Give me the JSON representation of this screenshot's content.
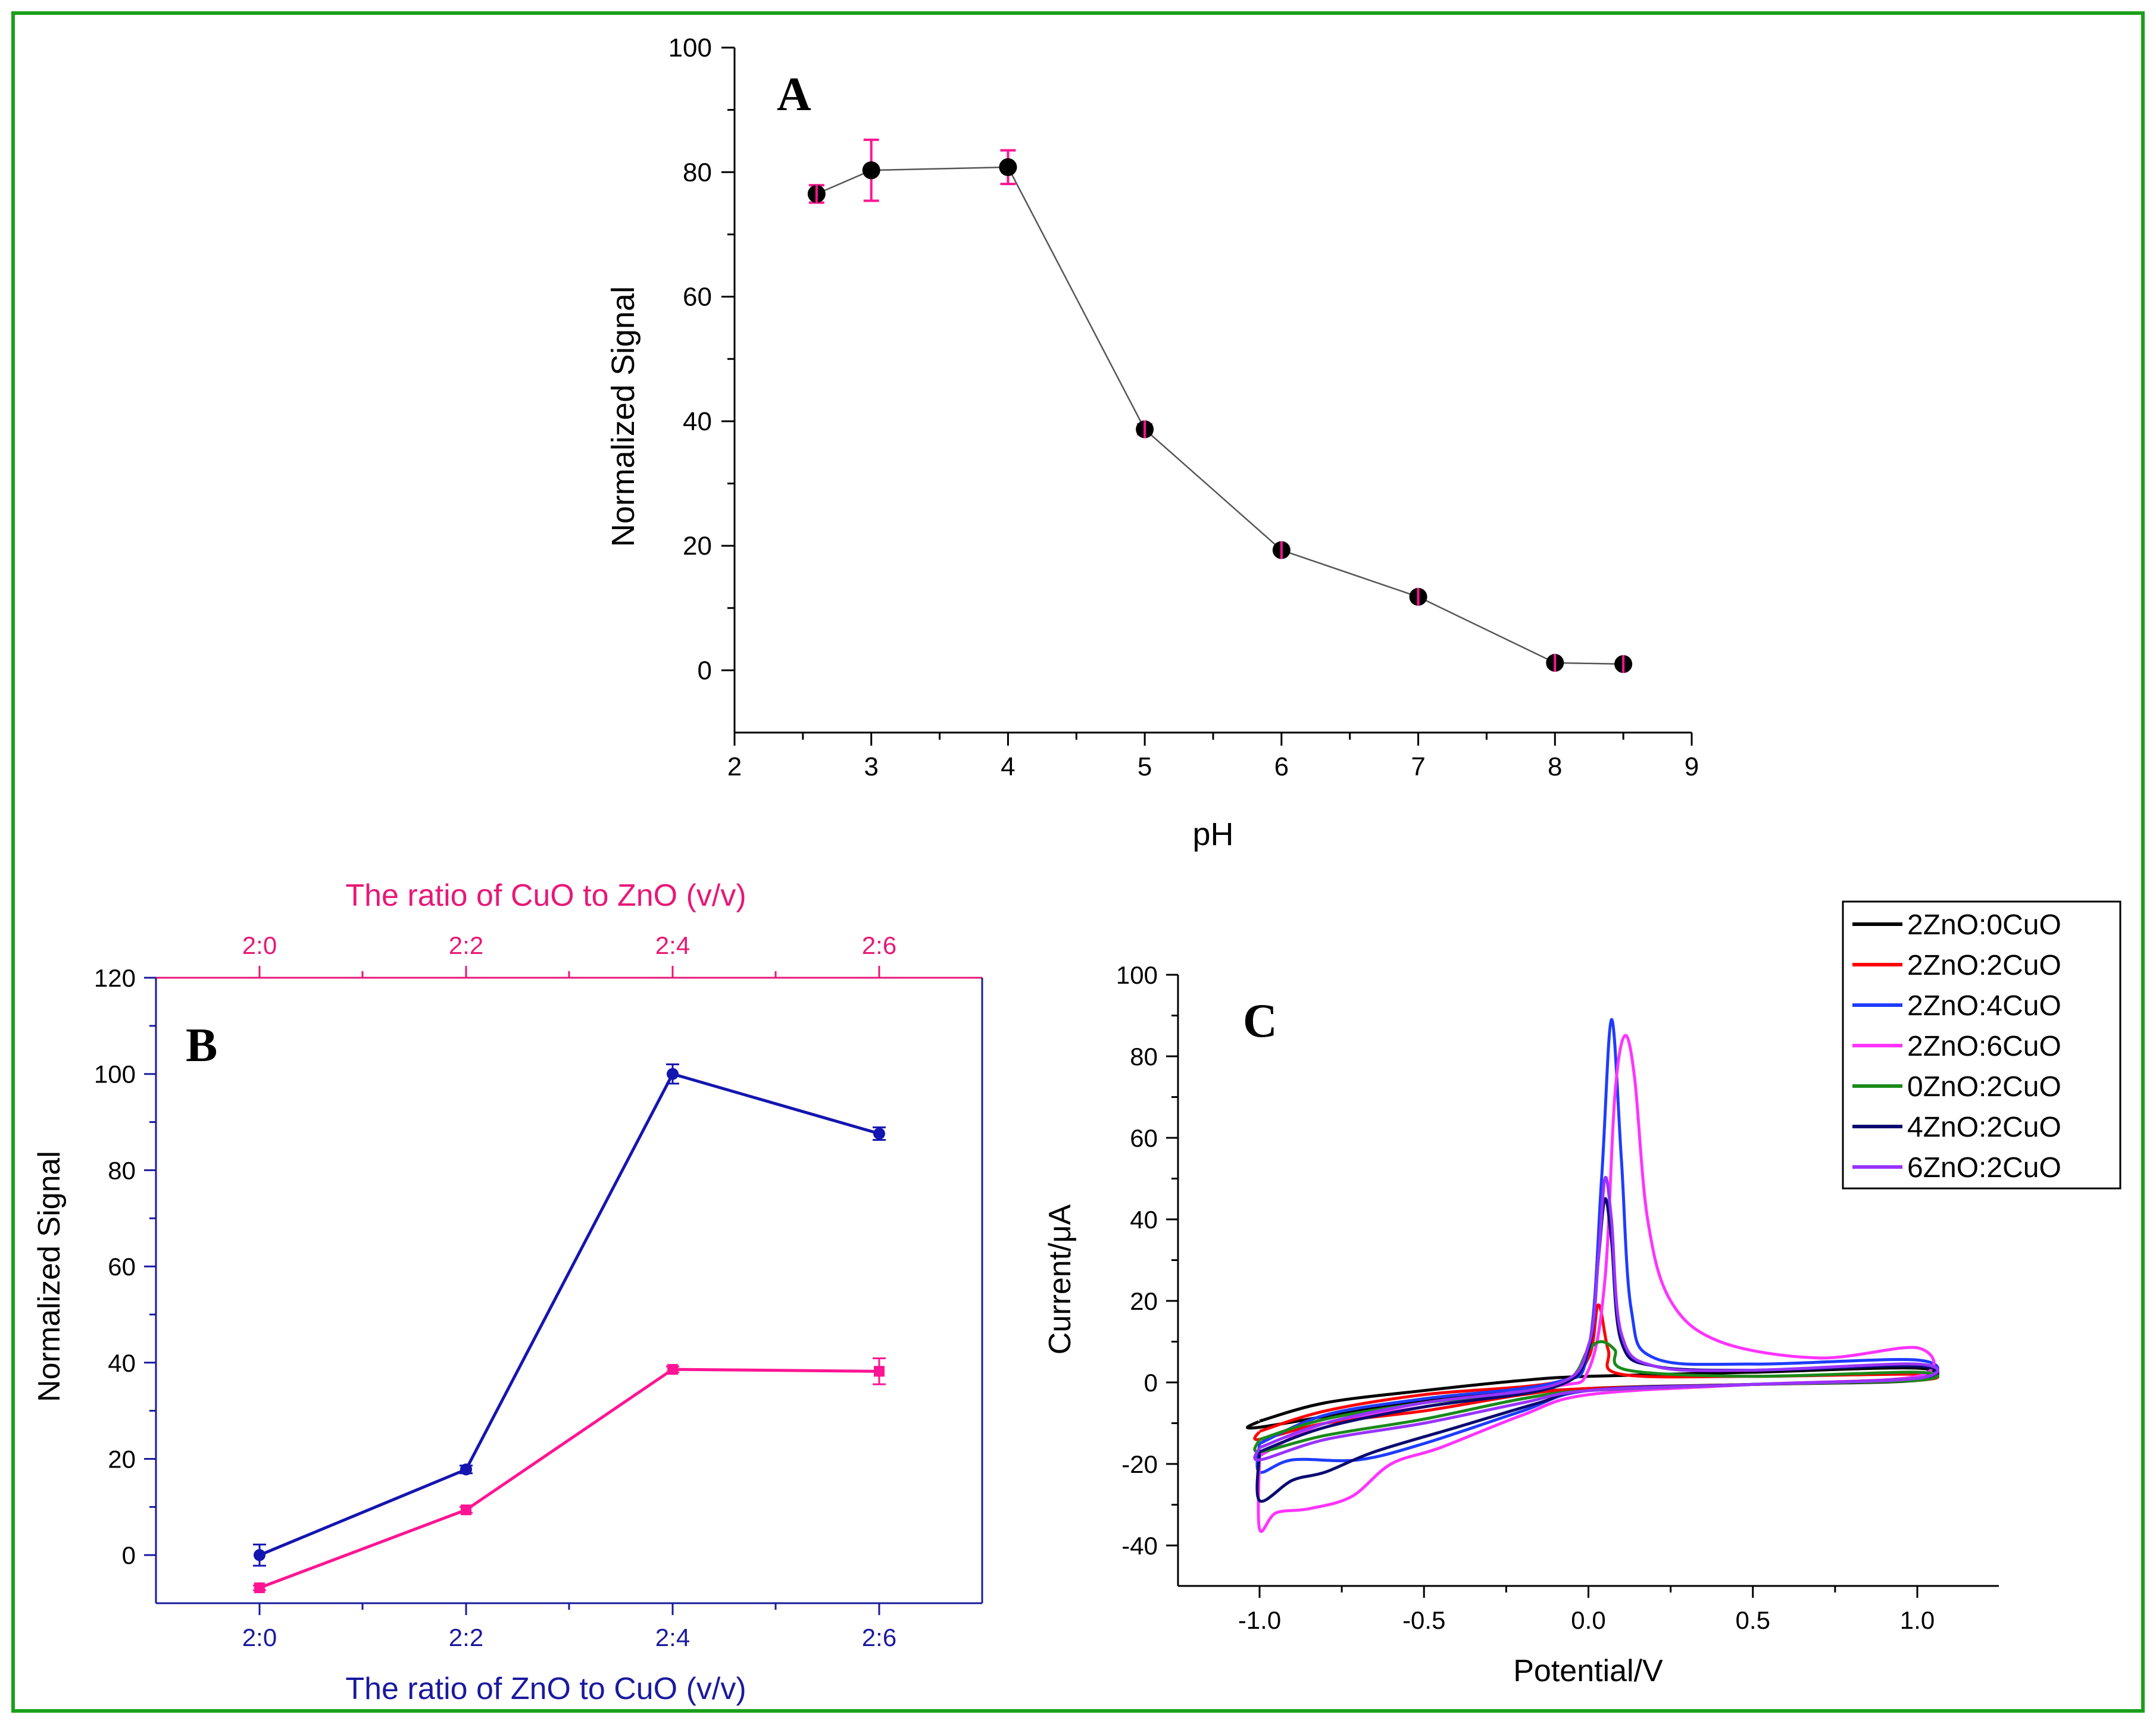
{
  "colors": {
    "border": "#1aa01a",
    "black": "#000000",
    "grey_line": "#555555",
    "pink": "#ff1493",
    "blue": "#1515b0",
    "pink_axis": "#e81877",
    "blue_axis": "#1a1a9e"
  },
  "chart_data": [
    {
      "id": "A",
      "type": "line",
      "panel_label": "A",
      "xlabel": "pH",
      "ylabel": "Normalized Signal",
      "xlim": [
        2,
        9
      ],
      "ylim": [
        -10,
        100
      ],
      "xticks": [
        "2",
        "3",
        "4",
        "5",
        "6",
        "7",
        "8",
        "9"
      ],
      "yticks": [
        "0",
        "20",
        "40",
        "60",
        "80",
        "100"
      ],
      "x": [
        2.6,
        3,
        4,
        5,
        6,
        7,
        8,
        8.5
      ],
      "y": [
        76.5,
        80.3,
        80.8,
        38.7,
        19.3,
        11.8,
        1.2,
        1.0
      ],
      "err": [
        1.4,
        4.9,
        2.7,
        0.8,
        0.6,
        0.6,
        0.6,
        0.6
      ],
      "marker_color": "#000000",
      "error_color": "#ff1493",
      "line_color": "#555555"
    },
    {
      "id": "B",
      "type": "line",
      "panel_label": "B",
      "xlabel": "The ratio of ZnO to CuO (v/v)",
      "x2label": "The ratio of CuO to ZnO (v/v)",
      "ylabel": "Normalized Signal",
      "ylim": [
        -10,
        120
      ],
      "yticks": [
        "0",
        "20",
        "40",
        "60",
        "80",
        "100",
        "120"
      ],
      "categories": [
        "2:0",
        "2:2",
        "2:4",
        "2:6"
      ],
      "top_categories": [
        "2:0",
        "2:2",
        "2:4",
        "2:6"
      ],
      "series": [
        {
          "name": "ZnO to CuO",
          "values": [
            0,
            17.8,
            100,
            87.6
          ],
          "err": [
            2.2,
            0.8,
            2.0,
            1.3
          ]
        },
        {
          "name": "CuO to ZnO",
          "values": [
            -6.8,
            9.4,
            38.6,
            38.2
          ],
          "err": [
            0.5,
            0.6,
            0.6,
            2.7
          ]
        }
      ]
    },
    {
      "id": "C",
      "type": "line",
      "panel_label": "C",
      "xlabel": "Potential/V",
      "ylabel": "Current/μA",
      "xlim": [
        -1.25,
        1.25
      ],
      "ylim": [
        -50,
        100
      ],
      "xticks": [
        "-1.0",
        "-0.5",
        "0.0",
        "0.5",
        "1.0"
      ],
      "yticks": [
        "-40",
        "-20",
        "0",
        "20",
        "40",
        "60",
        "80",
        "100"
      ],
      "legend_position": "top-right",
      "series": [
        {
          "name": "2ZnO:0CuO",
          "color": "#000000",
          "upper": [
            [
              -1,
              -9.5
            ],
            [
              -0.8,
              -5
            ],
            [
              -0.5,
              -2
            ],
            [
              -0.2,
              0.5
            ],
            [
              0,
              1.5
            ],
            [
              0.5,
              2.5
            ],
            [
              1,
              3.5
            ]
          ],
          "lower": [
            [
              -1,
              -11
            ],
            [
              -0.5,
              -4.5
            ],
            [
              0,
              -1.5
            ],
            [
              0.5,
              -0.5
            ],
            [
              1,
              0.5
            ]
          ]
        },
        {
          "name": "2ZnO:2CuO",
          "color": "#ff0000",
          "upper": [
            [
              -1,
              -12
            ],
            [
              -0.8,
              -7
            ],
            [
              -0.5,
              -3
            ],
            [
              -0.1,
              0
            ],
            [
              0,
              6
            ],
            [
              0.03,
              19
            ],
            [
              0.06,
              8
            ],
            [
              0.1,
              2
            ],
            [
              0.5,
              1.5
            ],
            [
              1,
              2
            ]
          ],
          "lower": [
            [
              -1,
              -14
            ],
            [
              -0.8,
              -10
            ],
            [
              -0.5,
              -7
            ],
            [
              -0.2,
              -3
            ],
            [
              0,
              -1.5
            ],
            [
              0.5,
              -0.5
            ],
            [
              1,
              0.5
            ]
          ]
        },
        {
          "name": "2ZnO:4CuO",
          "color": "#1e3cff",
          "upper": [
            [
              -1,
              -15
            ],
            [
              -0.8,
              -8
            ],
            [
              -0.5,
              -4
            ],
            [
              -0.1,
              0
            ],
            [
              0,
              8
            ],
            [
              0.04,
              50
            ],
            [
              0.07,
              89
            ],
            [
              0.1,
              55
            ],
            [
              0.13,
              18
            ],
            [
              0.2,
              6
            ],
            [
              0.5,
              4.5
            ],
            [
              1,
              5.5
            ]
          ],
          "lower": [
            [
              -1,
              -22
            ],
            [
              -0.9,
              -19
            ],
            [
              -0.7,
              -19
            ],
            [
              -0.5,
              -15
            ],
            [
              -0.2,
              -7
            ],
            [
              0,
              -2
            ],
            [
              0.5,
              -0.5
            ],
            [
              1,
              1
            ]
          ]
        },
        {
          "name": "2ZnO:6CuO",
          "color": "#ff33ff",
          "upper": [
            [
              -1,
              -18
            ],
            [
              -0.8,
              -10
            ],
            [
              -0.5,
              -6
            ],
            [
              -0.1,
              -1
            ],
            [
              0,
              3
            ],
            [
              0.05,
              25
            ],
            [
              0.08,
              70
            ],
            [
              0.11,
              85
            ],
            [
              0.14,
              75
            ],
            [
              0.18,
              40
            ],
            [
              0.25,
              20
            ],
            [
              0.4,
              10
            ],
            [
              0.7,
              6
            ],
            [
              1,
              8.5
            ]
          ],
          "lower": [
            [
              -1,
              -36
            ],
            [
              -0.95,
              -32
            ],
            [
              -0.85,
              -31
            ],
            [
              -0.72,
              -28
            ],
            [
              -0.6,
              -20
            ],
            [
              -0.45,
              -16
            ],
            [
              -0.2,
              -8
            ],
            [
              0,
              -3
            ],
            [
              0.5,
              -0.5
            ],
            [
              1,
              1.5
            ]
          ]
        },
        {
          "name": "0ZnO:2CuO",
          "color": "#1a8a1a",
          "upper": [
            [
              -1,
              -14
            ],
            [
              -0.8,
              -9
            ],
            [
              -0.5,
              -5
            ],
            [
              -0.1,
              -1
            ],
            [
              0,
              8
            ],
            [
              0.04,
              10
            ],
            [
              0.08,
              8
            ],
            [
              0.12,
              3
            ],
            [
              0.5,
              1.5
            ],
            [
              1,
              2.5
            ]
          ],
          "lower": [
            [
              -1,
              -17
            ],
            [
              -0.8,
              -13
            ],
            [
              -0.5,
              -9
            ],
            [
              -0.2,
              -4
            ],
            [
              0,
              -2
            ],
            [
              0.5,
              -0.5
            ],
            [
              1,
              0.5
            ]
          ]
        },
        {
          "name": "4ZnO:2CuO",
          "color": "#0a0a70",
          "upper": [
            [
              -1,
              -17
            ],
            [
              -0.8,
              -11
            ],
            [
              -0.5,
              -6
            ],
            [
              -0.1,
              -1
            ],
            [
              0,
              8
            ],
            [
              0.03,
              30
            ],
            [
              0.05,
              45
            ],
            [
              0.07,
              35
            ],
            [
              0.1,
              10
            ],
            [
              0.2,
              4
            ],
            [
              0.5,
              3
            ],
            [
              1,
              4
            ]
          ],
          "lower": [
            [
              -1,
              -29
            ],
            [
              -0.9,
              -24
            ],
            [
              -0.8,
              -22
            ],
            [
              -0.65,
              -17
            ],
            [
              -0.4,
              -11
            ],
            [
              -0.15,
              -5
            ],
            [
              0,
              -2
            ],
            [
              0.5,
              -0.5
            ],
            [
              1,
              1
            ]
          ]
        },
        {
          "name": "6ZnO:2CuO",
          "color": "#9933ff",
          "upper": [
            [
              -1,
              -16
            ],
            [
              -0.8,
              -10
            ],
            [
              -0.5,
              -5
            ],
            [
              -0.1,
              -0.5
            ],
            [
              0,
              9
            ],
            [
              0.03,
              30
            ],
            [
              0.05,
              50
            ],
            [
              0.07,
              40
            ],
            [
              0.1,
              12
            ],
            [
              0.2,
              4
            ],
            [
              0.5,
              3
            ],
            [
              1,
              4.5
            ]
          ],
          "lower": [
            [
              -1,
              -19
            ],
            [
              -0.8,
              -14
            ],
            [
              -0.5,
              -10
            ],
            [
              -0.2,
              -5
            ],
            [
              0,
              -2
            ],
            [
              0.5,
              -0.5
            ],
            [
              1,
              1
            ]
          ]
        }
      ]
    }
  ]
}
